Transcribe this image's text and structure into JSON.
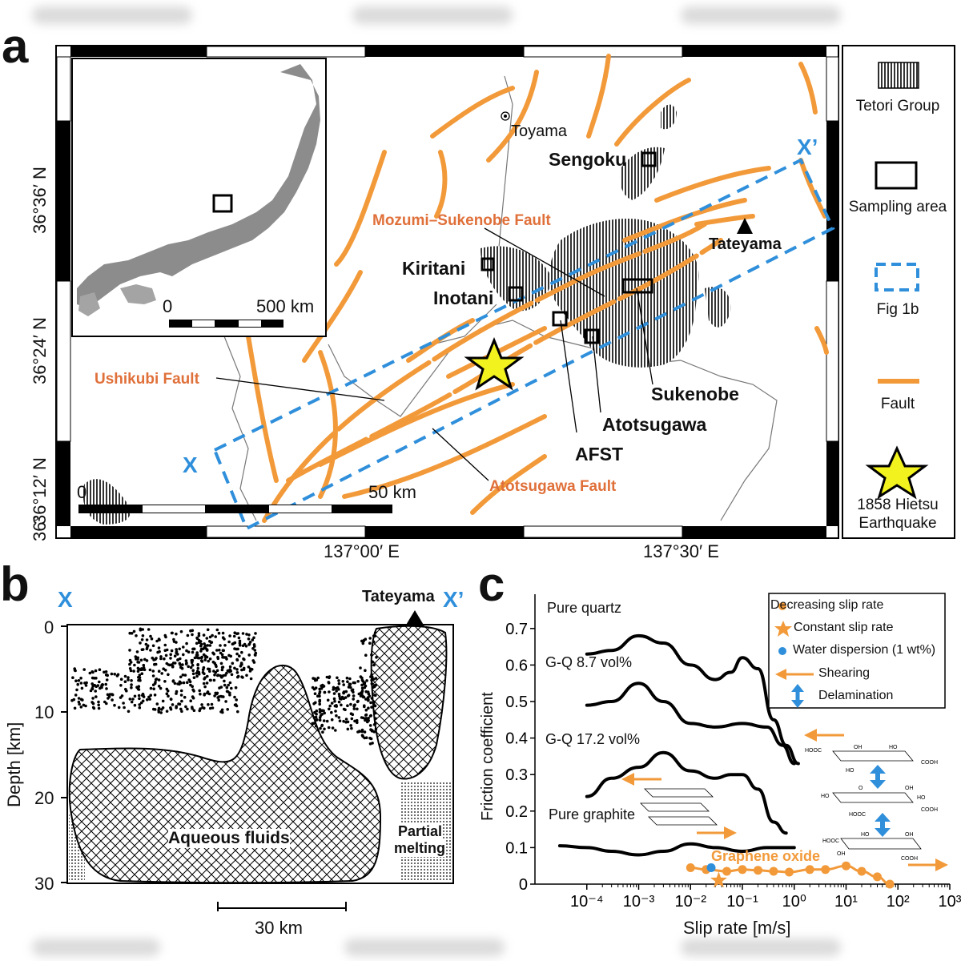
{
  "panels": {
    "a": "a",
    "b": "b",
    "c": "c"
  },
  "map_a": {
    "lat_labels": [
      "36°36′ N",
      "36°24′ N",
      "36°12′ N",
      "36°"
    ],
    "lon_labels": [
      "137°00′ E",
      "137°30′ E"
    ],
    "inset_scale": {
      "zero": "0",
      "end": "500 km"
    },
    "map_scale": {
      "zero": "0",
      "end": "50 km"
    },
    "section_ends": {
      "start": "X",
      "end": "X’"
    },
    "places": {
      "toyama": "Toyama",
      "sengoku": "Sengoku",
      "tateyama": "Tateyama",
      "kiritani": "Kiritani",
      "inotani": "Inotani",
      "sukenobe": "Sukenobe",
      "atotsugawa": "Atotsugawa",
      "afst": "AFST"
    },
    "faults": {
      "mozumi": "Mozumi–Sukenobe Fault",
      "ushikubi": "Ushikubi Fault",
      "atotsugawa_fault": "Atotsugawa Fault"
    },
    "legend": {
      "tetori": "Tetori Group",
      "sampling": "Sampling area",
      "fig1b": "Fig 1b",
      "fault": "Fault",
      "quake_line1": "1858 Hietsu",
      "quake_line2": "Earthquake"
    },
    "colors": {
      "fault": "#f29a3a",
      "fault_label": "#e0703a",
      "section_box": "#2f8fdb",
      "star_fill": "#f2f21e"
    }
  },
  "section_b": {
    "ends": {
      "start": "X",
      "end": "X’"
    },
    "peak": "Tateyama",
    "ylabel": "Depth [km]",
    "yticks": [
      "0",
      "10",
      "20",
      "30"
    ],
    "zones": {
      "fluids": "Aqueous fluids",
      "melt_line1": "Partial",
      "melt_line2": "melting"
    },
    "scale": "30 km"
  },
  "chart_data": {
    "type": "line",
    "title": "",
    "xlabel": "Slip rate [m/s]",
    "ylabel": "Friction coefficient",
    "xscale": "log",
    "xlim": [
      1e-05,
      1000
    ],
    "ylim": [
      0,
      0.75
    ],
    "xtick_labels": [
      "10⁻⁴",
      "10⁻³",
      "10⁻²",
      "10⁻¹",
      "10⁰",
      "10¹",
      "10²",
      "10³"
    ],
    "xtick_values": [
      0.0001,
      0.001,
      0.01,
      0.1,
      1,
      10,
      100,
      1000
    ],
    "ytick_labels": [
      "0",
      "0.1",
      "0.2",
      "0.3",
      "0.4",
      "0.5",
      "0.6",
      "0.7"
    ],
    "ytick_values": [
      0,
      0.1,
      0.2,
      0.3,
      0.4,
      0.5,
      0.6,
      0.7
    ],
    "series": [
      {
        "name": "Pure quartz",
        "color": "#000000",
        "x": [
          0.0001,
          0.0003,
          0.001,
          0.003,
          0.01,
          0.03,
          0.06,
          0.1,
          0.2,
          0.4,
          0.7,
          1.2
        ],
        "y": [
          0.63,
          0.64,
          0.68,
          0.66,
          0.6,
          0.56,
          0.58,
          0.62,
          0.59,
          0.45,
          0.38,
          0.33
        ]
      },
      {
        "name": "G-Q 8.7 vol%",
        "color": "#000000",
        "x": [
          0.0001,
          0.0003,
          0.001,
          0.003,
          0.01,
          0.03,
          0.1,
          0.3,
          0.6,
          1.0
        ],
        "y": [
          0.49,
          0.5,
          0.55,
          0.5,
          0.44,
          0.43,
          0.44,
          0.43,
          0.38,
          0.33
        ]
      },
      {
        "name": "G-Q 17.2 vol%",
        "color": "#000000",
        "x": [
          0.0001,
          0.0003,
          0.001,
          0.003,
          0.01,
          0.03,
          0.06,
          0.1,
          0.2,
          0.4,
          0.7
        ],
        "y": [
          0.24,
          0.29,
          0.32,
          0.36,
          0.31,
          0.29,
          0.3,
          0.3,
          0.26,
          0.17,
          0.14
        ]
      },
      {
        "name": "Pure graphite",
        "color": "#000000",
        "x": [
          3e-05,
          0.0001,
          0.0003,
          0.001,
          0.003,
          0.01,
          0.03,
          0.1,
          0.3,
          1.0
        ],
        "y": [
          0.105,
          0.1,
          0.09,
          0.08,
          0.09,
          0.11,
          0.1,
          0.09,
          0.1,
          0.1
        ]
      },
      {
        "name": "Graphene oxide",
        "color": "#f29a3a",
        "x": [
          0.01,
          0.02,
          0.05,
          0.1,
          0.2,
          0.4,
          0.8,
          2,
          4,
          10,
          20,
          40,
          70
        ],
        "y": [
          0.045,
          0.04,
          0.035,
          0.04,
          0.038,
          0.035,
          0.033,
          0.04,
          0.04,
          0.05,
          0.035,
          0.02,
          0.0
        ]
      }
    ],
    "markers": {
      "constant_slip_rate": {
        "x": 0.035,
        "y": 0.01
      },
      "water_dispersion": {
        "x": 0.025,
        "y": 0.045
      }
    },
    "labels": {
      "quartz": "Pure quartz",
      "gq87": "G-Q 8.7 vol%",
      "gq172": "G-Q 17.2 vol%",
      "graphite": "Pure graphite",
      "go": "Graphene oxide"
    },
    "legend": {
      "items": [
        "Decreasing slip rate",
        "Constant slip rate",
        "Water dispersion (1 wt%)",
        "Shearing",
        "Delamination"
      ],
      "placement": "top-right"
    },
    "molecule_groups": {
      "hooc": "HOOC",
      "oh": "OH",
      "ho": "HO",
      "cooh": "COOH",
      "o": "O"
    }
  }
}
